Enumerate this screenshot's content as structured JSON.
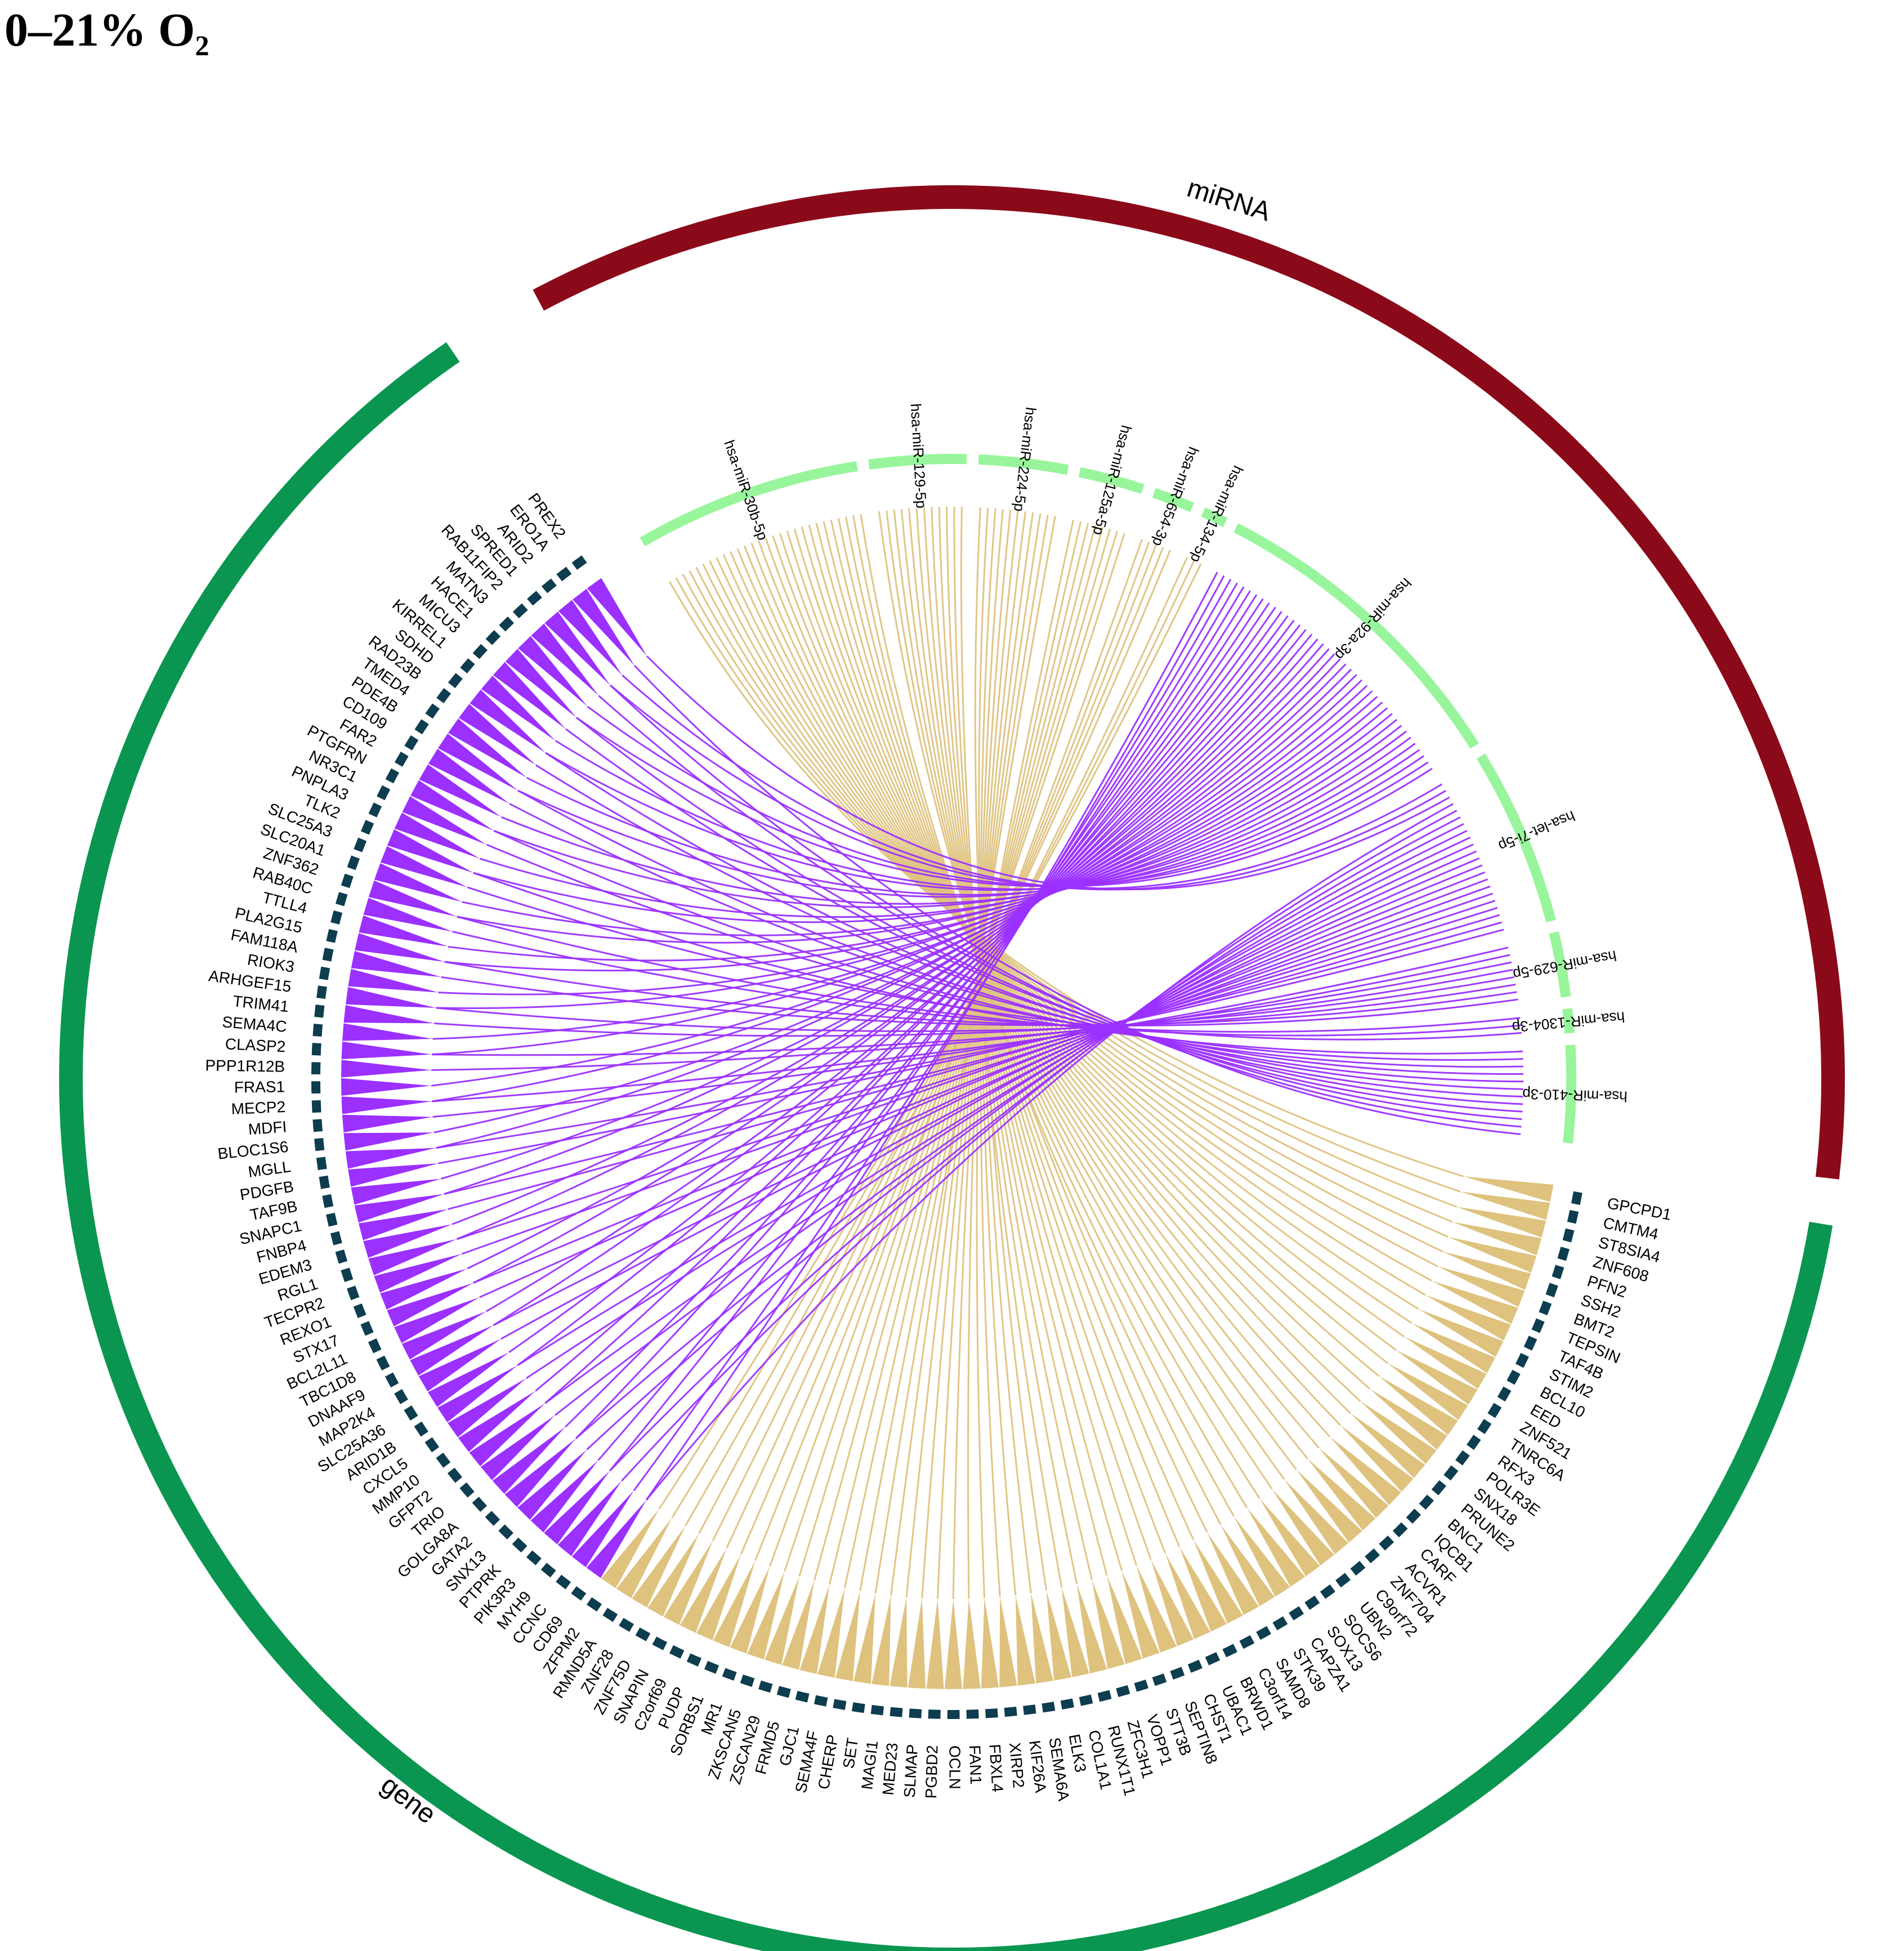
{
  "title": "0–21% O₂",
  "groups": {
    "mirna": {
      "label": "miRNA",
      "color": "#8B0A1A"
    },
    "gene": {
      "label": "gene",
      "color": "#0A9650"
    }
  },
  "colors": {
    "mirna_segment": "#98F59B",
    "gene_track": "#0D3D4E",
    "link_purple": "#9B30FF",
    "link_tan": "#DEC27E"
  },
  "mirnas": [
    {
      "name": "hsa-miR-30b-5p",
      "links": 28,
      "color": "#DEC27E"
    },
    {
      "name": "hsa-miR-129-5p",
      "links": 12,
      "color": "#DEC27E"
    },
    {
      "name": "hsa-miR-224-5p",
      "links": 11,
      "color": "#DEC27E"
    },
    {
      "name": "hsa-miR-125a-5p",
      "links": 8,
      "color": "#DEC27E"
    },
    {
      "name": "hsa-miR-654-3p",
      "links": 5,
      "color": "#DEC27E"
    },
    {
      "name": "hsa-miR-134-5p",
      "links": 3,
      "color": "#DEC27E"
    },
    {
      "name": "hsa-miR-92a-3p",
      "links": 40,
      "color": "#9B30FF"
    },
    {
      "name": "hsa-let-7i-5p",
      "links": 22,
      "color": "#9B30FF"
    },
    {
      "name": "hsa-miR-629-5p",
      "links": 8,
      "color": "#9B30FF"
    },
    {
      "name": "hsa-miR-1304-3p",
      "links": 3,
      "color": "#9B30FF"
    },
    {
      "name": "hsa-miR-410-3p",
      "links": 12,
      "color": "#9B30FF"
    }
  ],
  "genes": [
    "GPCPD1",
    "CMTM4",
    "ST8SIA4",
    "ZNF608",
    "PFN2",
    "SSH2",
    "BMT2",
    "TEPSIN",
    "TAF4B",
    "STIM2",
    "BCL10",
    "EED",
    "ZNF521",
    "TNRC6A",
    "RFX3",
    "POLR3E",
    "SNX18",
    "PRUNE2",
    "BNC1",
    "IQCB1",
    "CARF",
    "ACVR1",
    "ZNF704",
    "C9orf72",
    "UBN2",
    "SOCS6",
    "SOX13",
    "CAPZA1",
    "STK39",
    "SAMD8",
    "C3orf14",
    "BRWD1",
    "UBAC1",
    "CHST1",
    "SEPTIN8",
    "STT3B",
    "VOPP1",
    "ZFC3H1",
    "RUNX1T1",
    "COL1A1",
    "ELK3",
    "SEMA6A",
    "KIF26A",
    "XIRP2",
    "FBXL4",
    "FAN1",
    "OCLN",
    "PGBD2",
    "SLMAP",
    "MED23",
    "MAGI1",
    "SET",
    "CHERP",
    "SEMA4F",
    "GJC1",
    "FRMD5",
    "ZSCAN29",
    "ZKSCAN5",
    "MR1",
    "SORBS1",
    "PUDP",
    "C2orf69",
    "SNAPIN",
    "ZNF75D",
    "ZNF28",
    "RMND5A",
    "ZFPM2",
    "CD69",
    "CCNC",
    "MYH9",
    "PIK3R3",
    "PTPRK",
    "SNX13",
    "GATA2",
    "GOLGA8A",
    "TRIO",
    "GFPT2",
    "MMP10",
    "CXCL5",
    "ARID1B",
    "SLC25A36",
    "MAP2K4",
    "DNAAF9",
    "TBC1D8",
    "BCL2L11",
    "STX17",
    "REXO1",
    "TECPR2",
    "RGL1",
    "EDEM3",
    "FNBP4",
    "SNAPC1",
    "TAF9B",
    "PDGFB",
    "MGLL",
    "BLOC1S6",
    "MDFI",
    "MECP2",
    "FRAS1",
    "PPP1R12B",
    "CLASP2",
    "SEMA4C",
    "TRIM41",
    "ARHGEF15",
    "RIOK3",
    "FAM118A",
    "PLA2G15",
    "TTLL4",
    "RAB40C",
    "ZNF362",
    "SLC20A1",
    "SLC25A3",
    "TLK2",
    "PNPLA3",
    "NR3C1",
    "PTGFRN",
    "FAR2",
    "CD109",
    "PDE4B",
    "TMED4",
    "RAD23B",
    "SDHD",
    "KIRREL1",
    "MICU3",
    "HACE1",
    "MATN3",
    "RAB11FIP2",
    "SPRED1",
    "ARID2",
    "ERO1A",
    "PREX2"
  ]
}
